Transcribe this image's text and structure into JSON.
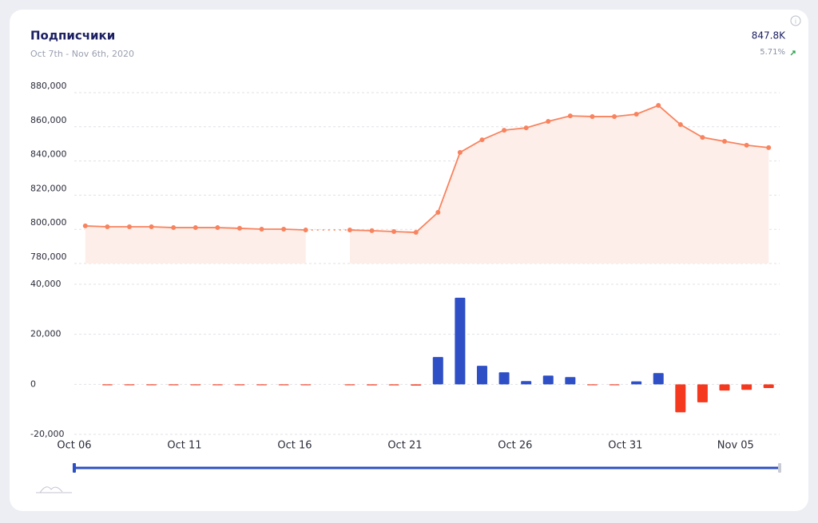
{
  "header": {
    "title": "Подписчики",
    "subtitle": "Oct 7th - Nov 6th, 2020",
    "total": "847.8K",
    "change": "5.71%"
  },
  "chart_data": [
    {
      "type": "line",
      "color": "#f8835e",
      "fill": "#fdeee9",
      "values": [
        802000,
        801500,
        801500,
        801500,
        801000,
        801000,
        801000,
        800600,
        800100,
        800100,
        799600,
        null,
        799600,
        799200,
        798700,
        798200,
        809900,
        845000,
        852400,
        858000,
        859400,
        863200,
        866400,
        866000,
        866000,
        867400,
        872500,
        861300,
        853800,
        851500,
        849200,
        847800
      ],
      "ylim": [
        780000,
        880000
      ],
      "yticks": [
        {
          "value": 780000,
          "label": "780,000"
        },
        {
          "value": 800000,
          "label": "800,000"
        },
        {
          "value": 820000,
          "label": "820,000"
        },
        {
          "value": 840000,
          "label": "840,000"
        },
        {
          "value": 860000,
          "label": "860,000"
        },
        {
          "value": 880000,
          "label": "880,000"
        }
      ],
      "grid": true
    },
    {
      "type": "bar",
      "color": "#2e4fc6",
      "negative_color": "#f4391e",
      "categories": [
        "Oct 06",
        null,
        null,
        null,
        null,
        "Oct 11",
        null,
        null,
        null,
        null,
        "Oct 16",
        null,
        null,
        null,
        null,
        "Oct 21",
        null,
        null,
        null,
        null,
        "Oct 26",
        null,
        null,
        null,
        null,
        "Oct 31",
        null,
        null,
        null,
        null,
        "Nov 05",
        null
      ],
      "values": [
        null,
        -300,
        -100,
        -100,
        -100,
        -200,
        -100,
        -100,
        -200,
        -200,
        -100,
        null,
        -100,
        -400,
        -400,
        -500,
        10900,
        34600,
        7400,
        4800,
        1300,
        3500,
        2900,
        -300,
        -100,
        1200,
        4500,
        -11200,
        -7200,
        -2500,
        -2200,
        -1500
      ],
      "ylim": [
        -20000,
        40000
      ],
      "yticks": [
        {
          "value": -20000,
          "label": "-20,000"
        },
        0,
        {
          "value": 20000,
          "label": "20,000"
        },
        {
          "value": 40000,
          "label": "40,000"
        }
      ],
      "grid": true
    }
  ]
}
